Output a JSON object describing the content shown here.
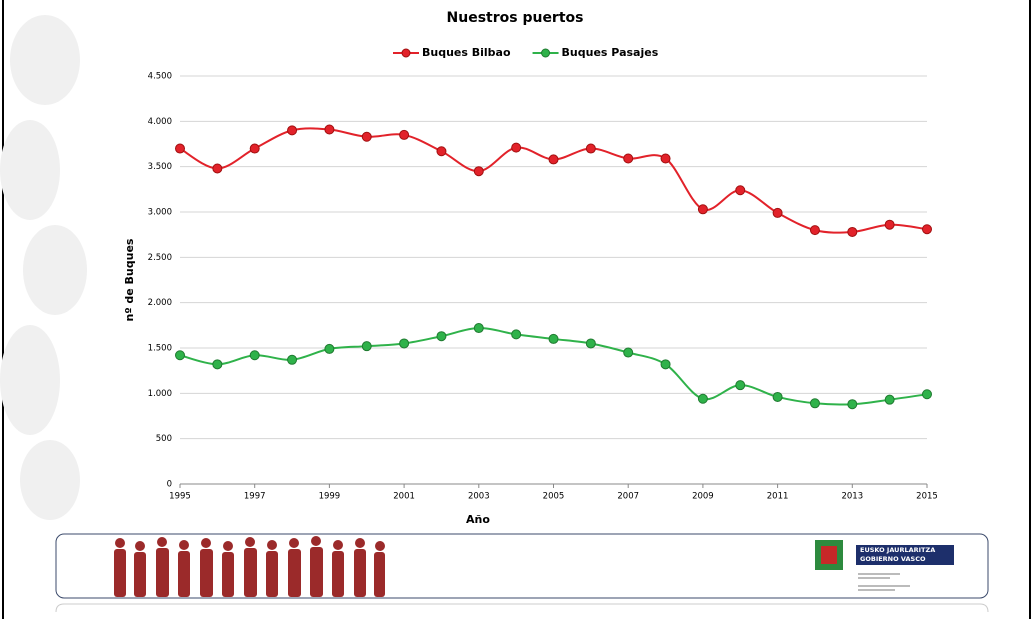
{
  "chart_data": {
    "type": "line",
    "title": "Nuestros puertos",
    "x_label": "Año",
    "y_label": "nº de Buques",
    "x": [
      1995,
      1996,
      1997,
      1998,
      1999,
      2000,
      2001,
      2002,
      2003,
      2004,
      2005,
      2006,
      2007,
      2008,
      2009,
      2010,
      2011,
      2012,
      2013,
      2014,
      2015
    ],
    "series": [
      {
        "name": "Buques Bilbao",
        "color": "#e2222a",
        "values": [
          3700,
          3480,
          3700,
          3900,
          3910,
          3830,
          3850,
          3670,
          3450,
          3710,
          3580,
          3700,
          3590,
          3590,
          3030,
          3240,
          2990,
          2800,
          2780,
          2860,
          2810
        ]
      },
      {
        "name": "Buques Pasajes",
        "color": "#2fb24a",
        "values": [
          1420,
          1320,
          1420,
          1370,
          1490,
          1520,
          1550,
          1630,
          1720,
          1650,
          1600,
          1550,
          1450,
          1320,
          940,
          1090,
          960,
          890,
          880,
          930,
          990
        ]
      }
    ],
    "xlim": [
      1995,
      2015
    ],
    "xticks": [
      1995,
      1997,
      1999,
      2001,
      2003,
      2005,
      2007,
      2009,
      2011,
      2013,
      2015
    ],
    "ylim": [
      0,
      4500
    ],
    "yticks": [
      0,
      500,
      {
        "value": 1000,
        "label": "1.000"
      },
      {
        "value": 1500,
        "label": "1.500"
      },
      {
        "value": 2000,
        "label": "2.000"
      },
      {
        "value": 2500,
        "label": "2.500"
      },
      {
        "value": 3000,
        "label": "3.000"
      },
      {
        "value": 3500,
        "label": "3.500"
      },
      {
        "value": 4000,
        "label": "4.000"
      },
      {
        "value": 4500,
        "label": "4.500"
      }
    ],
    "grid": true,
    "legend": "top",
    "smooth": true
  },
  "footer": {
    "logo_lines": [
      "EUSKO JAURLARITZA",
      "GOBIERNO VASCO"
    ]
  }
}
